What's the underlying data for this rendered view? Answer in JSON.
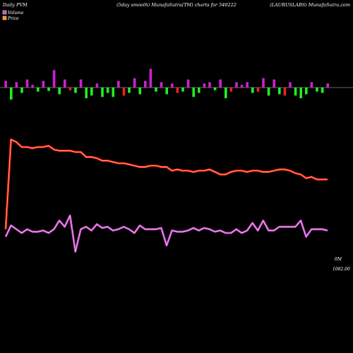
{
  "header": {
    "left": "Daily PVM",
    "center": "(5day smooth) MunafaSutra(TM) charts for 540222",
    "right": "(LAURUSLABS) MunafaSutra.com"
  },
  "legend": [
    {
      "label": "Volume",
      "color": "#cc44cc"
    },
    {
      "label": "Price",
      "color": "#ff8c00"
    }
  ],
  "colors": {
    "background": "#000000",
    "volume_line": "#cc44cc",
    "price_line": "#ff2200",
    "bar_up": "#cc22cc",
    "bar_down_green": "#22ee22",
    "bar_down_red": "#ee2222",
    "baseline": "#888888"
  },
  "chart_data": {
    "type": "line",
    "title": "",
    "series": [
      {
        "name": "Volume",
        "values": [
          82,
          91,
          88,
          85,
          88,
          86,
          86,
          87,
          85,
          88,
          95,
          90,
          99,
          70,
          88,
          90,
          87,
          92,
          89,
          90,
          87,
          88,
          90,
          88,
          85,
          91,
          88,
          88,
          88,
          89,
          75,
          87,
          86,
          86,
          87,
          89,
          87,
          89,
          88,
          86,
          87,
          85,
          85,
          88,
          85,
          87,
          93,
          87,
          95,
          87,
          87,
          90,
          90,
          90,
          90,
          95,
          82,
          88,
          88,
          88,
          87
        ]
      },
      {
        "name": "Price",
        "values": [
          88,
          160,
          158,
          154,
          154,
          153,
          154,
          154,
          155,
          152,
          151,
          151,
          151,
          150,
          150,
          146,
          146,
          145,
          143,
          143,
          142,
          141,
          141,
          140,
          139,
          138,
          138,
          139,
          139,
          138,
          138,
          135,
          136,
          135,
          135,
          134,
          135,
          135,
          136,
          134,
          132,
          132,
          134,
          135,
          135,
          134,
          135,
          135,
          134,
          134,
          135,
          136,
          136,
          135,
          133,
          132,
          129,
          130,
          128,
          128,
          128
        ]
      }
    ],
    "price_label": "1082.00",
    "volume_label": "0M",
    "pvm_bars": [
      10,
      -18,
      8,
      -8,
      12,
      4,
      -6,
      10,
      -5,
      26,
      -10,
      12,
      -4,
      -8,
      12,
      -16,
      -12,
      6,
      -14,
      -8,
      -14,
      10,
      -12,
      -8,
      14,
      -10,
      10,
      28,
      -6,
      8,
      -10,
      6,
      -8,
      -6,
      12,
      -14,
      -8,
      6,
      8,
      -4,
      12,
      -16,
      -6,
      8,
      4,
      8,
      -8,
      -6,
      14,
      -12,
      12,
      -10,
      -12,
      8,
      -12,
      -16,
      -10,
      8,
      -6,
      -8,
      6
    ]
  }
}
